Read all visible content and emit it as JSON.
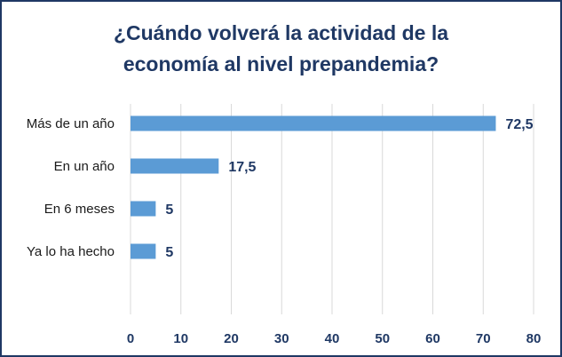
{
  "chart_data": {
    "type": "bar",
    "orientation": "horizontal",
    "title_lines": [
      "¿Cuándo volverá la actividad de la",
      "economía al nivel prepandemia?"
    ],
    "categories": [
      "Más de un año",
      "En un año",
      "En 6 meses",
      "Ya lo ha hecho"
    ],
    "values": [
      72.5,
      17.5,
      5,
      5
    ],
    "value_labels": [
      "72,5",
      "17,5",
      "5",
      "5"
    ],
    "xlim": [
      0,
      80
    ],
    "xticks": [
      "0",
      "10",
      "20",
      "30",
      "40",
      "50",
      "60",
      "70",
      "80"
    ],
    "xlabel": "",
    "ylabel": "",
    "grid": "vertical",
    "legend": "none"
  },
  "colors": {
    "bar": "#5b9bd5",
    "title": "#1f3864",
    "value_label": "#1f3864",
    "tick_label": "#1f3864",
    "grid": "#d9d9d9",
    "border": "#1f3864"
  }
}
